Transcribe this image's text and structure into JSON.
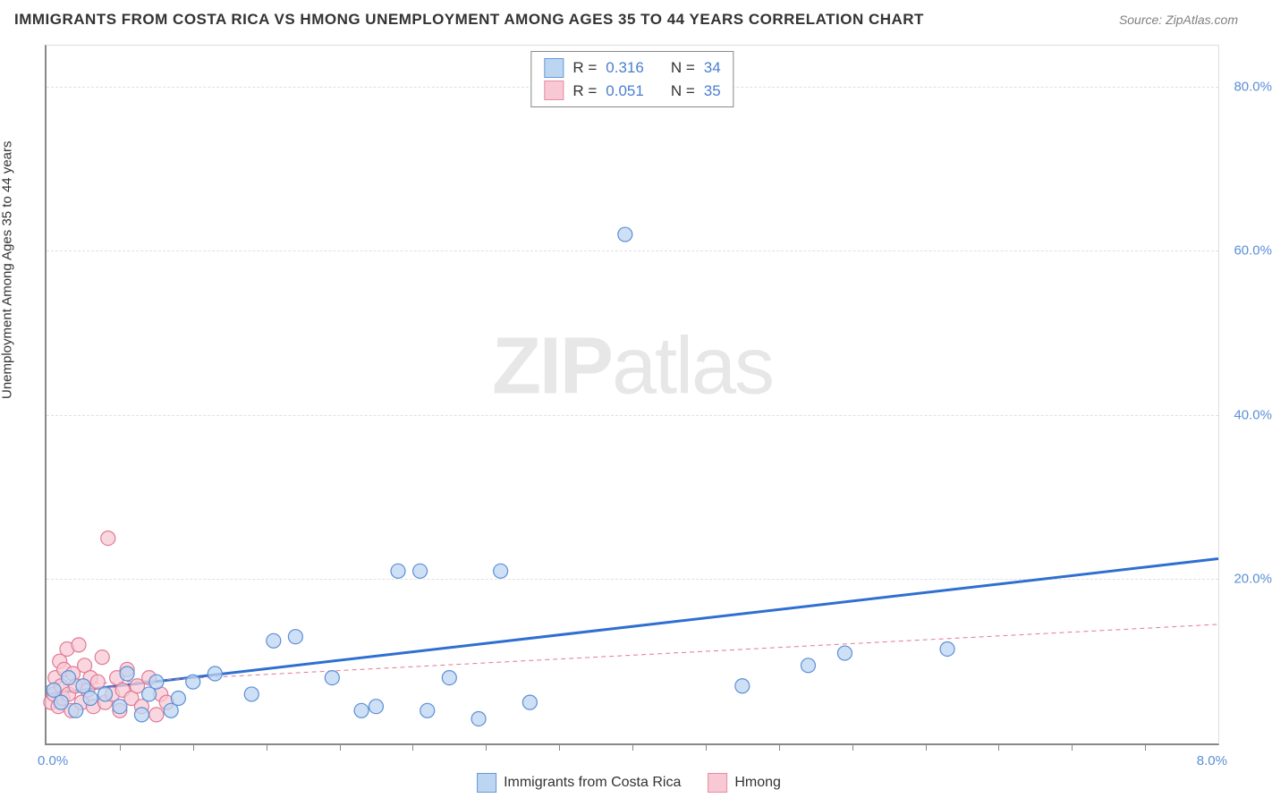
{
  "title": "IMMIGRANTS FROM COSTA RICA VS HMONG UNEMPLOYMENT AMONG AGES 35 TO 44 YEARS CORRELATION CHART",
  "source": "Source: ZipAtlas.com",
  "watermark_zip": "ZIP",
  "watermark_atlas": "atlas",
  "y_axis_label": "Unemployment Among Ages 35 to 44 years",
  "chart": {
    "type": "scatter",
    "background_color": "#ffffff",
    "grid_color": "#e0e0e0",
    "axis_color": "#888888",
    "tick_label_color": "#5b8fd6",
    "xlim": [
      0.0,
      8.0
    ],
    "ylim": [
      0.0,
      85.0
    ],
    "y_ticks": [
      20.0,
      40.0,
      60.0,
      80.0
    ],
    "y_tick_labels": [
      "20.0%",
      "40.0%",
      "60.0%",
      "80.0%"
    ],
    "x_minor_ticks": [
      0.5,
      1.0,
      1.5,
      2.0,
      2.5,
      3.0,
      3.5,
      4.0,
      4.5,
      5.0,
      5.5,
      6.0,
      6.5,
      7.0,
      7.5
    ],
    "x_tick_label_left": "0.0%",
    "x_tick_label_right": "8.0%",
    "legend_stats": {
      "r_label": "R =",
      "n_label": "N =",
      "rows": [
        {
          "color_fill": "#bcd6f2",
          "color_border": "#6699d8",
          "r": "0.316",
          "n": "34"
        },
        {
          "color_fill": "#f8c9d4",
          "color_border": "#e88ba4",
          "r": "0.051",
          "n": "35"
        }
      ]
    },
    "legend_bottom": [
      {
        "label": "Immigrants from Costa Rica",
        "fill": "#bcd6f2",
        "border": "#6699d8"
      },
      {
        "label": "Hmong",
        "fill": "#f8c9d4",
        "border": "#e88ba4"
      }
    ],
    "series": [
      {
        "name": "Immigrants from Costa Rica",
        "marker_fill": "#bcd6f2",
        "marker_border": "#5b8fd6",
        "marker_opacity": 0.75,
        "marker_radius": 8,
        "trendline_color": "#2f6fd0",
        "trendline_width": 3,
        "trendline_dash": "none",
        "trendline": {
          "y_at_x0": 6.0,
          "y_at_xmax": 22.5
        },
        "points": [
          {
            "x": 0.05,
            "y": 6.5
          },
          {
            "x": 0.1,
            "y": 5.0
          },
          {
            "x": 0.15,
            "y": 8.0
          },
          {
            "x": 0.2,
            "y": 4.0
          },
          {
            "x": 0.25,
            "y": 7.0
          },
          {
            "x": 0.3,
            "y": 5.5
          },
          {
            "x": 0.4,
            "y": 6.0
          },
          {
            "x": 0.5,
            "y": 4.5
          },
          {
            "x": 0.55,
            "y": 8.5
          },
          {
            "x": 0.65,
            "y": 3.5
          },
          {
            "x": 0.7,
            "y": 6.0
          },
          {
            "x": 0.75,
            "y": 7.5
          },
          {
            "x": 0.85,
            "y": 4.0
          },
          {
            "x": 0.9,
            "y": 5.5
          },
          {
            "x": 1.0,
            "y": 7.5
          },
          {
            "x": 1.15,
            "y": 8.5
          },
          {
            "x": 1.4,
            "y": 6.0
          },
          {
            "x": 1.55,
            "y": 12.5
          },
          {
            "x": 1.7,
            "y": 13.0
          },
          {
            "x": 1.95,
            "y": 8.0
          },
          {
            "x": 2.15,
            "y": 4.0
          },
          {
            "x": 2.25,
            "y": 4.5
          },
          {
            "x": 2.4,
            "y": 21.0
          },
          {
            "x": 2.55,
            "y": 21.0
          },
          {
            "x": 2.6,
            "y": 4.0
          },
          {
            "x": 2.75,
            "y": 8.0
          },
          {
            "x": 2.95,
            "y": 3.0
          },
          {
            "x": 3.1,
            "y": 21.0
          },
          {
            "x": 3.3,
            "y": 5.0
          },
          {
            "x": 3.95,
            "y": 62.0
          },
          {
            "x": 4.75,
            "y": 7.0
          },
          {
            "x": 5.2,
            "y": 9.5
          },
          {
            "x": 5.45,
            "y": 11.0
          },
          {
            "x": 6.15,
            "y": 11.5
          }
        ]
      },
      {
        "name": "Hmong",
        "marker_fill": "#f8c9d4",
        "marker_border": "#e07a96",
        "marker_opacity": 0.75,
        "marker_radius": 8,
        "trendline_color": "#e07a96",
        "trendline_width": 1,
        "trendline_dash": "5,4",
        "trendline": {
          "y_at_x0": 7.0,
          "y_at_xmax": 14.5
        },
        "points": [
          {
            "x": 0.03,
            "y": 5.0
          },
          {
            "x": 0.05,
            "y": 6.0
          },
          {
            "x": 0.06,
            "y": 8.0
          },
          {
            "x": 0.08,
            "y": 4.5
          },
          {
            "x": 0.09,
            "y": 10.0
          },
          {
            "x": 0.1,
            "y": 7.0
          },
          {
            "x": 0.11,
            "y": 5.5
          },
          {
            "x": 0.12,
            "y": 9.0
          },
          {
            "x": 0.14,
            "y": 11.5
          },
          {
            "x": 0.15,
            "y": 6.0
          },
          {
            "x": 0.17,
            "y": 4.0
          },
          {
            "x": 0.18,
            "y": 8.5
          },
          {
            "x": 0.2,
            "y": 7.0
          },
          {
            "x": 0.22,
            "y": 12.0
          },
          {
            "x": 0.24,
            "y": 5.0
          },
          {
            "x": 0.26,
            "y": 9.5
          },
          {
            "x": 0.28,
            "y": 6.5
          },
          {
            "x": 0.3,
            "y": 8.0
          },
          {
            "x": 0.32,
            "y": 4.5
          },
          {
            "x": 0.35,
            "y": 7.5
          },
          {
            "x": 0.38,
            "y": 10.5
          },
          {
            "x": 0.4,
            "y": 5.0
          },
          {
            "x": 0.42,
            "y": 25.0
          },
          {
            "x": 0.45,
            "y": 6.0
          },
          {
            "x": 0.48,
            "y": 8.0
          },
          {
            "x": 0.5,
            "y": 4.0
          },
          {
            "x": 0.52,
            "y": 6.5
          },
          {
            "x": 0.55,
            "y": 9.0
          },
          {
            "x": 0.58,
            "y": 5.5
          },
          {
            "x": 0.62,
            "y": 7.0
          },
          {
            "x": 0.65,
            "y": 4.5
          },
          {
            "x": 0.7,
            "y": 8.0
          },
          {
            "x": 0.75,
            "y": 3.5
          },
          {
            "x": 0.78,
            "y": 6.0
          },
          {
            "x": 0.82,
            "y": 5.0
          }
        ]
      }
    ]
  }
}
